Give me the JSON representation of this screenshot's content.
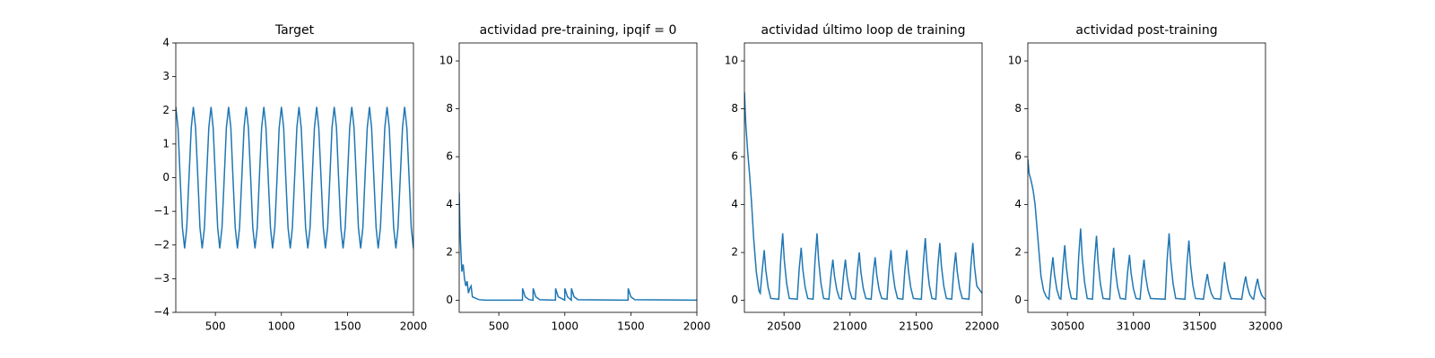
{
  "chart_data": [
    {
      "type": "line",
      "title": "Target",
      "color": "#1f77b4",
      "x": [
        200,
        217,
        233,
        250,
        267,
        283,
        300,
        317,
        333,
        350,
        367,
        383,
        400,
        417,
        433,
        450,
        467,
        483,
        500,
        517,
        533,
        550,
        567,
        583,
        600,
        617,
        633,
        650,
        667,
        683,
        700,
        717,
        733,
        750,
        767,
        783,
        800,
        817,
        833,
        850,
        867,
        883,
        900,
        917,
        933,
        950,
        967,
        983,
        1000,
        1017,
        1033,
        1050,
        1067,
        1083,
        1100,
        1117,
        1133,
        1150,
        1167,
        1183,
        1200,
        1217,
        1233,
        1250,
        1267,
        1283,
        1300,
        1317,
        1333,
        1350,
        1367,
        1383,
        1400,
        1417,
        1433,
        1450,
        1467,
        1483,
        1500,
        1517,
        1533,
        1550,
        1567,
        1583,
        1600,
        1617,
        1633,
        1650,
        1667,
        1683,
        1700,
        1717,
        1733,
        1750,
        1767,
        1783,
        1800,
        1817,
        1833,
        1850,
        1867,
        1883,
        1900,
        1917,
        1933,
        1950,
        1967,
        1983,
        2000
      ],
      "values": [
        2.1,
        1.48,
        0,
        -1.48,
        -2.1,
        -1.48,
        0,
        1.48,
        2.1,
        1.48,
        0,
        -1.48,
        -2.1,
        -1.48,
        0,
        1.48,
        2.1,
        1.48,
        0,
        -1.48,
        -2.1,
        -1.48,
        0,
        1.48,
        2.1,
        1.48,
        0,
        -1.48,
        -2.1,
        -1.48,
        0,
        1.48,
        2.1,
        1.48,
        0,
        -1.48,
        -2.1,
        -1.48,
        0,
        1.48,
        2.1,
        1.48,
        0,
        -1.48,
        -2.1,
        -1.48,
        0,
        1.48,
        2.1,
        1.48,
        0,
        -1.48,
        -2.1,
        -1.48,
        0,
        1.48,
        2.1,
        1.48,
        0,
        -1.48,
        -2.1,
        -1.48,
        0,
        1.48,
        2.1,
        1.48,
        0,
        -1.48,
        -2.1,
        -1.48,
        0,
        1.48,
        2.1,
        1.48,
        0,
        -1.48,
        -2.1,
        -1.48,
        0,
        1.48,
        2.1,
        1.48,
        0,
        -1.48,
        -2.1,
        -1.48,
        0,
        1.48,
        2.1,
        1.48,
        0,
        -1.48,
        -2.1,
        -1.48,
        0,
        1.48,
        2.1,
        1.48,
        0,
        -1.48,
        -2.1,
        -1.48,
        0,
        1.48,
        2.1,
        1.48,
        0,
        -1.48,
        -2.1
      ],
      "xlim": [
        200,
        2000
      ],
      "xticks": [
        500,
        1000,
        1500,
        2000
      ],
      "ylim": [
        -4,
        4
      ],
      "yticks": [
        {
          "value": -4,
          "label": "−4"
        },
        {
          "value": -3,
          "label": "−3"
        },
        {
          "value": -2,
          "label": "−2"
        },
        {
          "value": -1,
          "label": "−1"
        },
        0,
        1,
        2,
        3,
        4
      ]
    },
    {
      "type": "line",
      "title": "actividad pre-training, ipqif = 0",
      "color": "#1f77b4",
      "x": [
        200,
        205,
        210,
        215,
        220,
        230,
        240,
        250,
        260,
        270,
        280,
        290,
        300,
        320,
        350,
        400,
        679,
        680,
        700,
        730,
        759,
        760,
        780,
        810,
        929,
        930,
        950,
        999,
        1000,
        1020,
        1049,
        1050,
        1070,
        1100,
        1479,
        1480,
        1500,
        1530,
        2000
      ],
      "values": [
        4.5,
        3.2,
        2.4,
        1.8,
        1.2,
        1.5,
        0.9,
        0.6,
        0.8,
        0.3,
        0.5,
        0.6,
        0.15,
        0.1,
        0.03,
        0.01,
        0.01,
        0.5,
        0.15,
        0.03,
        0.01,
        0.5,
        0.15,
        0.03,
        0.01,
        0.5,
        0.15,
        0.01,
        0.5,
        0.15,
        0.01,
        0.5,
        0.15,
        0.03,
        0.01,
        0.5,
        0.15,
        0.03,
        0.01
      ],
      "xlim": [
        200,
        2000
      ],
      "xticks": [
        500,
        1000,
        1500,
        2000
      ],
      "ylim": [
        -0.5,
        10.75
      ],
      "yticks": [
        0,
        2,
        4,
        6,
        8,
        10
      ]
    },
    {
      "type": "line",
      "title": "actividad último loop de training",
      "color": "#1f77b4",
      "x": [
        20200,
        20210,
        20225,
        20240,
        20255,
        20270,
        20290,
        20310,
        20320,
        20335,
        20350,
        20362,
        20380,
        20400,
        20460,
        20475,
        20490,
        20502,
        20520,
        20540,
        20600,
        20615,
        20630,
        20642,
        20660,
        20680,
        20720,
        20735,
        20750,
        20762,
        20780,
        20800,
        20840,
        20855,
        20870,
        20882,
        20900,
        20920,
        20935,
        20950,
        20965,
        20977,
        20995,
        21015,
        21040,
        21055,
        21070,
        21082,
        21100,
        21120,
        21160,
        21175,
        21190,
        21202,
        21220,
        21240,
        21280,
        21295,
        21310,
        21322,
        21340,
        21360,
        21400,
        21415,
        21430,
        21442,
        21460,
        21480,
        21540,
        21555,
        21570,
        21582,
        21600,
        21620,
        21650,
        21665,
        21680,
        21692,
        21710,
        21730,
        21770,
        21785,
        21800,
        21812,
        21830,
        21850,
        21900,
        21915,
        21930,
        21942,
        21960,
        22000
      ],
      "values": [
        8.7,
        7.4,
        6.2,
        5.2,
        4.0,
        2.6,
        1.2,
        0.4,
        0.3,
        1.26,
        2.1,
        1.26,
        0.53,
        0.08,
        0.05,
        1.68,
        2.8,
        1.68,
        0.7,
        0.08,
        0.05,
        1.32,
        2.2,
        1.32,
        0.55,
        0.08,
        0.05,
        1.68,
        2.8,
        1.68,
        0.7,
        0.08,
        0.05,
        1.02,
        1.7,
        1.02,
        0.43,
        0.08,
        0.05,
        1.02,
        1.7,
        1.02,
        0.43,
        0.08,
        0.05,
        1.2,
        2.0,
        1.2,
        0.5,
        0.08,
        0.05,
        1.08,
        1.8,
        1.08,
        0.45,
        0.08,
        0.05,
        1.26,
        2.1,
        1.26,
        0.53,
        0.08,
        0.05,
        1.26,
        2.1,
        1.26,
        0.53,
        0.08,
        0.05,
        1.56,
        2.6,
        1.56,
        0.65,
        0.08,
        0.05,
        1.44,
        2.4,
        1.44,
        0.6,
        0.08,
        0.05,
        1.2,
        2.0,
        1.2,
        0.5,
        0.08,
        0.05,
        1.44,
        2.4,
        1.44,
        0.6,
        0.3
      ],
      "xlim": [
        20200,
        22000
      ],
      "xticks": [
        20500,
        21000,
        21500,
        22000
      ],
      "ylim": [
        -0.5,
        10.75
      ],
      "yticks": [
        0,
        2,
        4,
        6,
        8,
        10
      ]
    },
    {
      "type": "line",
      "title": "actividad post-training",
      "color": "#1f77b4",
      "x": [
        30200,
        30210,
        30225,
        30240,
        30255,
        30270,
        30285,
        30300,
        30320,
        30340,
        30360,
        30375,
        30390,
        30402,
        30420,
        30440,
        30450,
        30465,
        30480,
        30492,
        30510,
        30530,
        30570,
        30585,
        30600,
        30612,
        30630,
        30650,
        30690,
        30705,
        30720,
        30732,
        30750,
        30770,
        30820,
        30835,
        30850,
        30862,
        30880,
        30900,
        30940,
        30955,
        30970,
        30982,
        31000,
        31020,
        31050,
        31065,
        31080,
        31092,
        31110,
        31130,
        31240,
        31255,
        31270,
        31282,
        31300,
        31320,
        31390,
        31405,
        31420,
        31432,
        31450,
        31470,
        31530,
        31545,
        31560,
        31572,
        31590,
        31610,
        31660,
        31675,
        31690,
        31702,
        31720,
        31740,
        31820,
        31835,
        31850,
        31862,
        31880,
        31900,
        31910,
        31925,
        31940,
        31952,
        31970,
        31990,
        32000
      ],
      "values": [
        5.9,
        5.3,
        5.0,
        4.6,
        4.0,
        3.0,
        2.0,
        1.0,
        0.4,
        0.15,
        0.05,
        1.08,
        1.8,
        1.08,
        0.45,
        0.08,
        0.05,
        1.38,
        2.3,
        1.38,
        0.58,
        0.08,
        0.05,
        1.8,
        3.0,
        1.8,
        0.75,
        0.08,
        0.05,
        1.62,
        2.7,
        1.62,
        0.68,
        0.08,
        0.05,
        1.32,
        2.2,
        1.32,
        0.55,
        0.08,
        0.05,
        1.14,
        1.9,
        1.14,
        0.48,
        0.08,
        0.05,
        1.02,
        1.7,
        1.02,
        0.43,
        0.08,
        0.05,
        1.68,
        2.8,
        1.68,
        0.7,
        0.08,
        0.05,
        1.5,
        2.5,
        1.5,
        0.63,
        0.08,
        0.05,
        0.66,
        1.1,
        0.66,
        0.28,
        0.08,
        0.05,
        0.96,
        1.6,
        0.96,
        0.4,
        0.08,
        0.05,
        0.6,
        1.0,
        0.6,
        0.25,
        0.08,
        0.05,
        0.54,
        0.9,
        0.54,
        0.23,
        0.08,
        0.05
      ],
      "xlim": [
        30200,
        32000
      ],
      "xticks": [
        30500,
        31000,
        31500,
        32000
      ],
      "ylim": [
        -0.5,
        10.75
      ],
      "yticks": [
        0,
        2,
        4,
        6,
        8,
        10
      ]
    }
  ]
}
